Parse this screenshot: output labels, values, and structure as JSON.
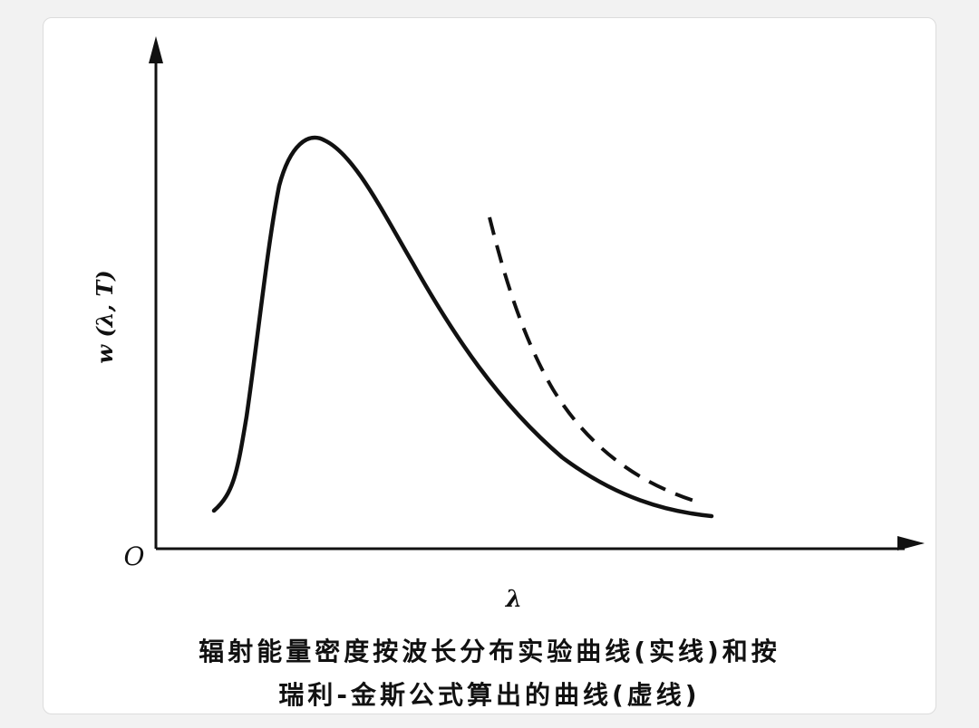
{
  "figure": {
    "y_axis_label": "w (λ, T)",
    "x_axis_label": "λ",
    "origin_label": "O",
    "caption_line1": "辐射能量密度按波长分布实验曲线(实线)和按",
    "caption_line2": "瑞利-金斯公式算出的曲线(虚线)",
    "colors": {
      "ink": "#111111",
      "card": "#ffffff",
      "page": "#f2f2f2"
    }
  }
}
